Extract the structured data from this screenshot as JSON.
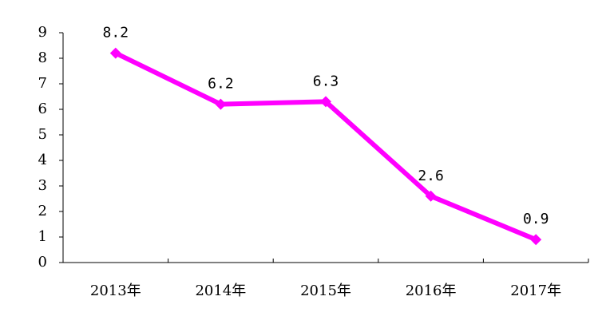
{
  "chart_data": {
    "type": "line",
    "categories": [
      "2013年",
      "2014年",
      "2015年",
      "2016年",
      "2017年"
    ],
    "values": [
      8.2,
      6.2,
      6.3,
      2.6,
      0.9
    ],
    "color": "#ff00ff",
    "ylim": [
      0,
      9
    ],
    "yticks": [
      0,
      1,
      2,
      3,
      4,
      5,
      6,
      7,
      8,
      9
    ],
    "grid": false,
    "data_labels": true
  }
}
